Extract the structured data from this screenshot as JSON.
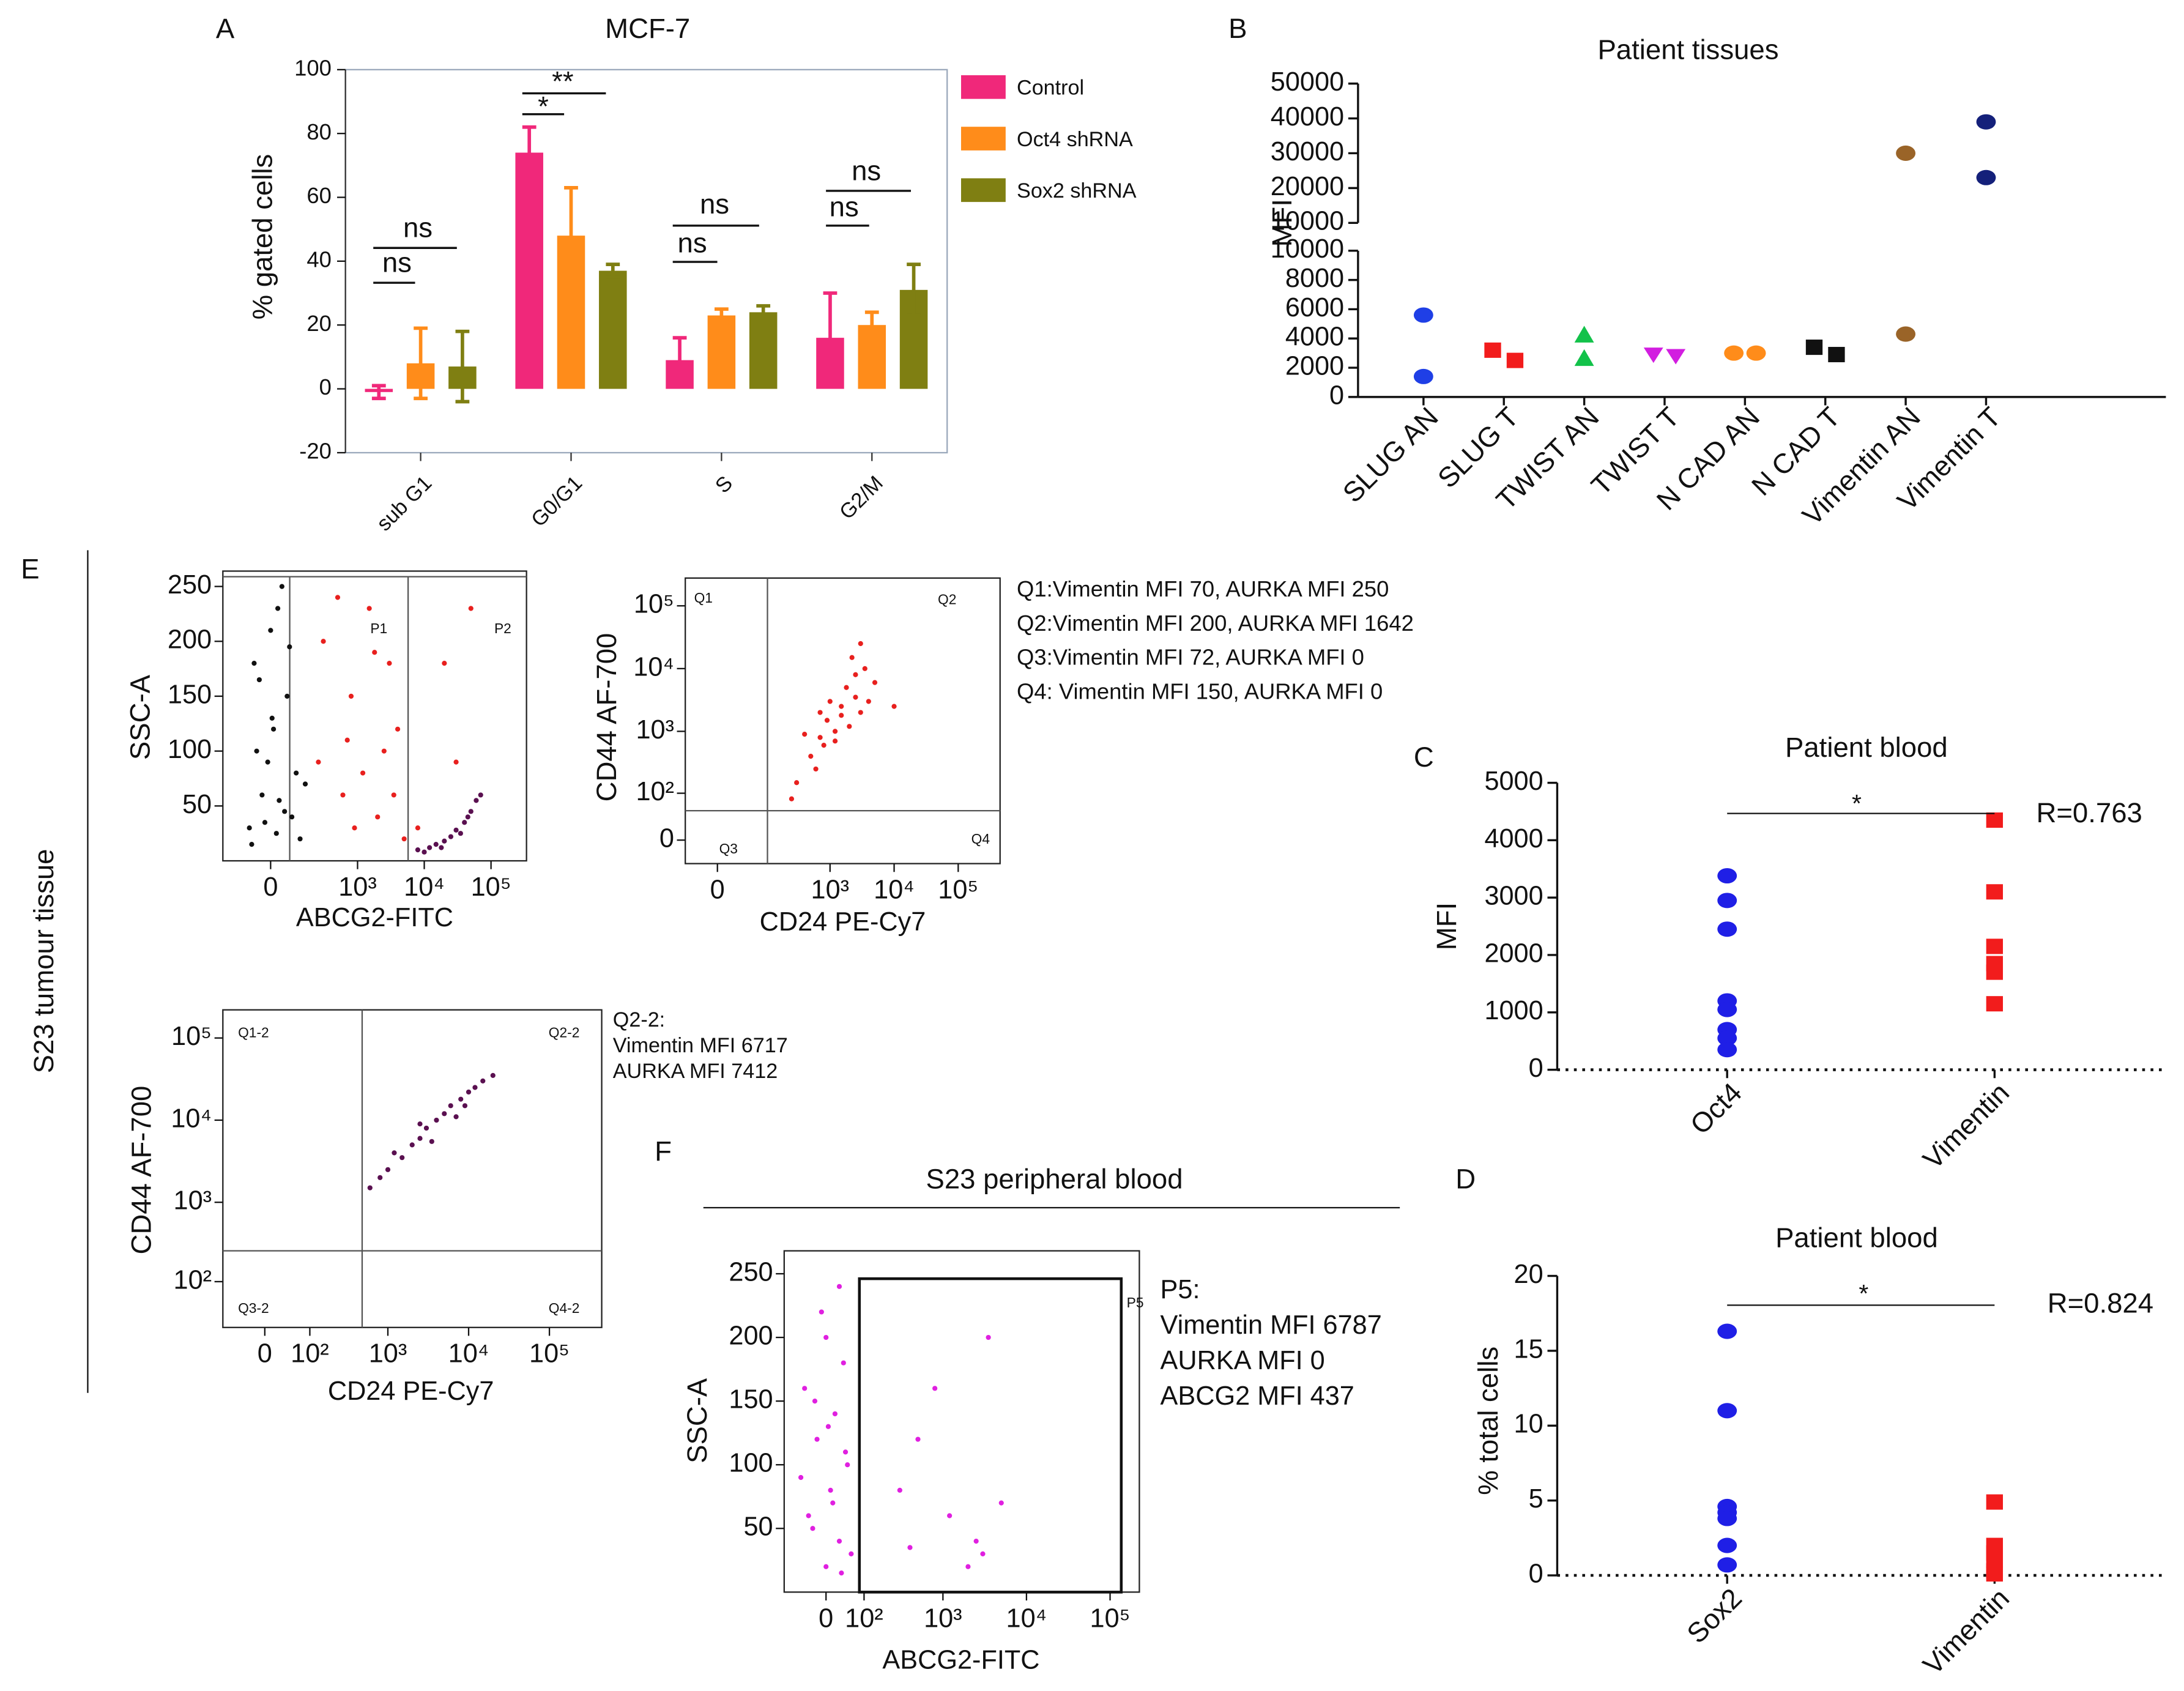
{
  "chart_data": [
    {
      "type": "bar",
      "panel": "A",
      "title": "MCF-7",
      "ylabel": "% gated cells",
      "categories": [
        "sub G1",
        "G0/G1",
        "S",
        "G2/M"
      ],
      "series": [
        {
          "name": "Control",
          "color": "#f0287a",
          "values": [
            -1,
            74,
            9,
            16
          ],
          "errors": [
            2,
            8,
            7,
            14
          ]
        },
        {
          "name": "Oct4 shRNA",
          "color": "#ff8c1a",
          "values": [
            8,
            48,
            23,
            20
          ],
          "errors": [
            11,
            15,
            2,
            4
          ]
        },
        {
          "name": "Sox2 shRNA",
          "color": "#7f7f12",
          "values": [
            7,
            37,
            24,
            31
          ],
          "errors": [
            11,
            2,
            2,
            8
          ]
        }
      ],
      "ylim": [
        -20,
        100
      ],
      "yticks": [
        -20,
        0,
        20,
        40,
        60,
        80,
        100
      ],
      "annotations": [
        "ns",
        "ns",
        "**",
        "*",
        "ns",
        "ns",
        "ns",
        "ns"
      ]
    },
    {
      "type": "strip",
      "panel": "B",
      "title": "Patient tissues",
      "ylabel": "MFI",
      "categories": [
        "SLUG AN",
        "SLUG T",
        "TWIST AN",
        "TWIST T",
        "N CAD AN",
        "N CAD T",
        "Vimentin AN",
        "Vimentin T"
      ],
      "values": [
        [
          5600,
          1400
        ],
        [
          3200,
          2500
        ],
        [
          4200,
          2600
        ],
        [
          2900,
          2800
        ],
        [
          3000,
          3000
        ],
        [
          3400,
          2900
        ],
        [
          30000,
          4300
        ],
        [
          39000,
          23000
        ]
      ],
      "colors": [
        "#1f3fe6",
        "#f21c1c",
        "#12c24a",
        "#d21ee0",
        "#ff8c1a",
        "#111111",
        "#9a6428",
        "#14207a"
      ],
      "markers": [
        "circle",
        "square",
        "triangle",
        "triangle-down",
        "circle",
        "square",
        "circle",
        "circle"
      ],
      "segments": [
        {
          "ylim": [
            0,
            10000
          ],
          "yticks": [
            0,
            2000,
            4000,
            6000,
            8000,
            10000
          ]
        },
        {
          "ylim": [
            10000,
            50000
          ],
          "yticks": [
            10000,
            20000,
            30000,
            40000,
            50000
          ]
        }
      ]
    },
    {
      "type": "strip",
      "panel": "C",
      "title": "Patient blood",
      "ylabel": "MFI",
      "categories": [
        "Oct4",
        "Vimentin"
      ],
      "values": [
        [
          3380,
          2950,
          2450,
          1200,
          1050,
          700,
          550,
          350
        ],
        [
          4350,
          3100,
          2150,
          1850,
          1700,
          1150
        ]
      ],
      "colors": [
        "#1f1fe6",
        "#f21c1c"
      ],
      "markers": [
        "circle",
        "square"
      ],
      "ylim": [
        0,
        5000
      ],
      "yticks": [
        0,
        1000,
        2000,
        3000,
        4000,
        5000
      ],
      "annotations": [
        "*",
        "R=0.763"
      ]
    },
    {
      "type": "strip",
      "panel": "D",
      "title": "Patient blood",
      "ylabel": "% total cells",
      "categories": [
        "Sox2",
        "Vimentin"
      ],
      "values": [
        [
          16.3,
          11,
          4.6,
          4.2,
          3.8,
          2,
          0.7
        ],
        [
          4.9,
          2,
          1.5,
          1,
          0.3,
          0.1
        ]
      ],
      "colors": [
        "#1f1fe6",
        "#f21c1c"
      ],
      "markers": [
        "circle",
        "square"
      ],
      "ylim": [
        0,
        20
      ],
      "yticks": [
        0,
        5,
        10,
        15,
        20
      ],
      "annotations": [
        "*",
        "R=0.824"
      ]
    },
    {
      "type": "flow",
      "panel": "E",
      "group_label": "S23 tumour tissue",
      "xlabel": "ABCG2-FITC",
      "ylabel": "SSC-A",
      "xscale": "biexponential",
      "yscale": "linear",
      "xlim": [
        -250,
        340000
      ],
      "ylim": [
        0,
        264
      ],
      "xticks": [
        0,
        {
          "value": 1000,
          "label": "10³"
        },
        {
          "value": 10000,
          "label": "10⁴"
        },
        {
          "value": 100000,
          "label": "10⁵"
        }
      ],
      "yticks": [
        50,
        100,
        150,
        200,
        250
      ],
      "gates": [
        "P1",
        "P2"
      ],
      "series": [
        {
          "color": "#111111",
          "x": [
            -80,
            50,
            -30,
            20,
            100,
            -50,
            10,
            60,
            -20,
            30,
            150,
            -60,
            0,
            80,
            40,
            -10,
            120,
            5,
            -40,
            70,
            25,
            -70
          ],
          "values": [
            30,
            45,
            60,
            25,
            80,
            100,
            120,
            150,
            35,
            55,
            70,
            180,
            210,
            40,
            250,
            90,
            20,
            130,
            165,
            195,
            230,
            15
          ]
        },
        {
          "color": "#e8201e",
          "x": [
            300,
            800,
            1500,
            2500,
            600,
            1200,
            3000,
            500,
            2000,
            4000,
            700,
            1800,
            250,
            3500,
            900,
            5000,
            8000,
            20000,
            50000,
            30000
          ],
          "values": [
            200,
            150,
            230,
            100,
            60,
            80,
            180,
            240,
            40,
            120,
            110,
            190,
            90,
            60,
            30,
            20,
            30,
            180,
            230,
            90
          ]
        },
        {
          "color": "#5a1050",
          "x": [
            8000,
            12000,
            15000,
            20000,
            25000,
            30000,
            40000,
            50000,
            60000,
            35000,
            18000,
            45000,
            70000,
            10000
          ],
          "values": [
            10,
            12,
            15,
            18,
            22,
            28,
            35,
            45,
            55,
            25,
            12,
            40,
            60,
            8
          ]
        }
      ]
    },
    {
      "type": "flow",
      "xlabel": "CD24 PE-Cy7",
      "ylabel": "CD44 AF-700",
      "xscale": "biexponential",
      "yscale": "biexponential",
      "xlim": [
        -50,
        450000
      ],
      "ylim": [
        -36,
        277000
      ],
      "xticks": [
        0,
        {
          "value": 1000,
          "label": "10³"
        },
        {
          "value": 10000,
          "label": "10⁴"
        },
        {
          "value": 100000,
          "label": "10⁵"
        }
      ],
      "yticks": [
        0,
        {
          "value": 100,
          "label": "10²"
        },
        {
          "value": 1000,
          "label": "10³"
        },
        {
          "value": 10000,
          "label": "10⁴"
        },
        {
          "value": 100000,
          "label": "10⁵"
        }
      ],
      "gates": [
        "Q1",
        "Q2",
        "Q3",
        "Q4"
      ],
      "annotations": [
        "Q1:Vimentin MFI 70, AURKA MFI 250",
        "Q2:Vimentin MFI 200, AURKA MFI 1642",
        "Q3:Vimentin MFI 72, AURKA MFI 0",
        "Q4: Vimentin MFI 150, AURKA MFI 0"
      ],
      "series": [
        {
          "color": "#e8201e",
          "x": [
            300,
            500,
            700,
            900,
            1200,
            1500,
            2000,
            2500,
            3000,
            800,
            1000,
            1800,
            2500,
            3500,
            1200,
            600,
            400,
            4000,
            5000,
            2200,
            3000,
            1500,
            700,
            250,
            10000
          ],
          "values": [
            150,
            400,
            800,
            1500,
            1000,
            2500,
            1200,
            3500,
            2000,
            600,
            3000,
            5000,
            8000,
            10000,
            700,
            250,
            900,
            3000,
            6000,
            15000,
            25000,
            1800,
            2000,
            80,
            2500
          ]
        }
      ]
    },
    {
      "type": "flow",
      "xlabel": "CD24 PE-Cy7",
      "ylabel": "CD44 AF-700",
      "xscale": "biexponential",
      "yscale": "biexponential",
      "xlim": [
        -90,
        444000
      ],
      "ylim": [
        0,
        220000
      ],
      "xticks": [
        0,
        {
          "value": 100,
          "label": "10²"
        },
        {
          "value": 1000,
          "label": "10³"
        },
        {
          "value": 10000,
          "label": "10⁴"
        },
        {
          "value": 100000,
          "label": "10⁵"
        }
      ],
      "yticks": [
        {
          "value": 100,
          "label": "10²"
        },
        {
          "value": 1000,
          "label": "10³"
        },
        {
          "value": 10000,
          "label": "10⁴"
        },
        {
          "value": 100000,
          "label": "10⁵"
        }
      ],
      "gates": [
        "Q1-2",
        "Q2-2",
        "Q3-2",
        "Q4-2"
      ],
      "annotations": [
        "Q2-2:",
        "Vimentin MFI 6717",
        "AURKA MFI 7412"
      ],
      "series": [
        {
          "color": "#5a1050",
          "x": [
            600,
            800,
            1000,
            1500,
            2000,
            2500,
            3000,
            4000,
            5000,
            6000,
            8000,
            10000,
            12000,
            15000,
            20000,
            1200,
            3500,
            7000,
            2500,
            9000
          ],
          "values": [
            1500,
            2000,
            2500,
            3500,
            5000,
            6000,
            8000,
            10000,
            12000,
            15000,
            18000,
            22000,
            25000,
            30000,
            35000,
            4000,
            5500,
            11000,
            9000,
            15000
          ]
        }
      ]
    },
    {
      "type": "flow",
      "panel": "F",
      "title": "S23 peripheral blood",
      "xlabel": "ABCG2-FITC",
      "ylabel": "SSC-A",
      "xscale": "biexponential",
      "yscale": "linear",
      "xlim": [
        -114,
        224000
      ],
      "ylim": [
        0,
        268
      ],
      "xticks": [
        0,
        {
          "value": 100,
          "label": "10²"
        },
        {
          "value": 1000,
          "label": "10³"
        },
        {
          "value": 10000,
          "label": "10⁴"
        },
        {
          "value": 100000,
          "label": "10⁵"
        }
      ],
      "yticks": [
        50,
        100,
        150,
        200,
        250
      ],
      "gates": [
        "P5"
      ],
      "annotations": [
        "P5:",
        "Vimentin MFI 6787",
        "AURKA MFI 0",
        "ABCG2 MFI 437"
      ],
      "series": [
        {
          "color": "#e020e0",
          "x": [
            0,
            30,
            -40,
            10,
            50,
            -20,
            20,
            -50,
            40,
            0,
            -10,
            30,
            60,
            -30,
            15,
            -60,
            45,
            5,
            -25,
            35,
            300,
            500,
            800,
            1200,
            2500,
            3000,
            5000,
            3500,
            400,
            2000
          ],
          "values": [
            20,
            40,
            60,
            80,
            100,
            120,
            140,
            160,
            180,
            200,
            220,
            240,
            30,
            50,
            70,
            90,
            110,
            130,
            150,
            15,
            80,
            120,
            160,
            60,
            40,
            30,
            70,
            200,
            35,
            20
          ]
        }
      ]
    }
  ]
}
